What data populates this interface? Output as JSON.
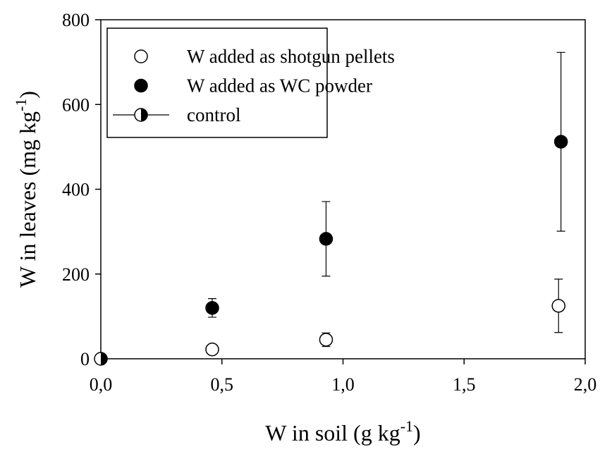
{
  "chart_data": {
    "type": "scatter",
    "xlabel": {
      "text": "W in soil (g kg",
      "sup": "-1",
      "tail": ")"
    },
    "ylabel": {
      "text": "W in leaves (mg kg",
      "sup": "-1",
      "tail": ")"
    },
    "xlim": [
      0,
      2.0
    ],
    "ylim": [
      0,
      800
    ],
    "xticks": [
      {
        "value": 0,
        "label": "0,0"
      },
      {
        "value": 0.5,
        "label": "0,5"
      },
      {
        "value": 1.0,
        "label": "1,0"
      },
      {
        "value": 1.5,
        "label": "1,5"
      },
      {
        "value": 2.0,
        "label": "2,0"
      }
    ],
    "yticks": [
      0,
      200,
      400,
      600,
      800
    ],
    "legend": "upper left",
    "series": [
      {
        "name": "W added as shotgun pellets",
        "color": "#ffffff",
        "marker": "open",
        "x": [
          0.46,
          0.93,
          1.89
        ],
        "values": [
          22,
          45,
          125
        ],
        "errors": [
          11,
          16,
          63
        ]
      },
      {
        "name": "W added as WC powder",
        "color": "#000000",
        "marker": "filled",
        "x": [
          0.46,
          0.93,
          1.9
        ],
        "values": [
          120,
          283,
          512
        ],
        "errors": [
          22,
          88,
          211
        ]
      },
      {
        "name": "control",
        "color": "#000000",
        "marker": "half",
        "x": [
          0
        ],
        "values": [
          0
        ]
      }
    ]
  }
}
